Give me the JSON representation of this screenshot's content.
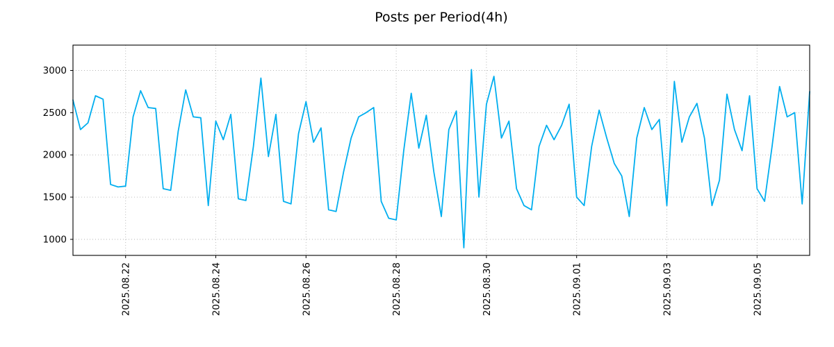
{
  "chart_data": {
    "type": "line",
    "title": "Posts per Period(4h)",
    "xlabel": "",
    "ylabel": "",
    "legend": "none",
    "grid": true,
    "grid_color": "#b3b3b3",
    "line_color": "#00AEEF",
    "ylim": [
      810,
      3300
    ],
    "y_ticks": [
      1000,
      1500,
      2000,
      2500,
      3000
    ],
    "x_tick_labels": [
      "2025.08.22",
      "2025.08.24",
      "2025.08.26",
      "2025.08.28",
      "2025.08.30",
      "2025.09.01",
      "2025.09.03",
      "2025.09.05"
    ],
    "x_tick_indices": [
      7,
      19,
      31,
      43,
      55,
      67,
      79,
      91
    ],
    "x_step_hours": 4,
    "values": [
      2650,
      2300,
      2380,
      2700,
      2660,
      1650,
      1620,
      1630,
      2450,
      2760,
      2560,
      2550,
      1600,
      1580,
      2280,
      2770,
      2450,
      2440,
      1400,
      2400,
      2180,
      2480,
      1480,
      1460,
      2100,
      2910,
      1980,
      2480,
      1450,
      1420,
      2250,
      2630,
      2150,
      2320,
      1350,
      1330,
      1800,
      2200,
      2450,
      2500,
      2560,
      1450,
      1250,
      1230,
      2050,
      2730,
      2080,
      2470,
      1800,
      1270,
      2300,
      2520,
      900,
      3010,
      1500,
      2600,
      2930,
      2200,
      2400,
      1600,
      1400,
      1350,
      2100,
      2350,
      2180,
      2350,
      2600,
      1500,
      1400,
      2100,
      2530,
      2200,
      1900,
      1750,
      1270,
      2200,
      2560,
      2300,
      2420,
      1400,
      2870,
      2150,
      2450,
      2610,
      2200,
      1400,
      1700,
      2720,
      2300,
      2050,
      2700,
      1600,
      1450,
      2100,
      2810,
      2450,
      2500,
      1420,
      2750
    ]
  }
}
